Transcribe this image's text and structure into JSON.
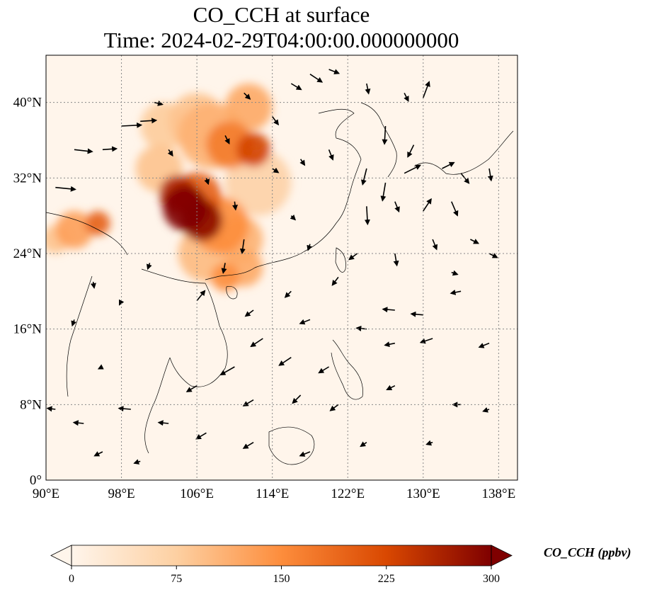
{
  "title": {
    "line1": "CO_CCH at surface",
    "line2": "Time: 2024-02-29T04:00:00.000000000"
  },
  "map": {
    "extent": {
      "lon_min": 90,
      "lon_max": 140,
      "lat_min": 0,
      "lat_max": 45
    },
    "gridlines": true,
    "lon_ticks": [
      {
        "v": 90,
        "label": "90°E"
      },
      {
        "v": 98,
        "label": "98°E"
      },
      {
        "v": 106,
        "label": "106°E"
      },
      {
        "v": 114,
        "label": "114°E"
      },
      {
        "v": 122,
        "label": "122°E"
      },
      {
        "v": 130,
        "label": "130°E"
      },
      {
        "v": 138,
        "label": "138°E"
      }
    ],
    "lat_ticks": [
      {
        "v": 0,
        "label": "0°"
      },
      {
        "v": 8,
        "label": "8°N"
      },
      {
        "v": 16,
        "label": "16°N"
      },
      {
        "v": 24,
        "label": "24°N"
      },
      {
        "v": 32,
        "label": "32°N"
      },
      {
        "v": 40,
        "label": "40°N"
      }
    ],
    "colormap": [
      "#fff5eb",
      "#fdd0a2",
      "#fd8d3c",
      "#d94801",
      "#7f0000"
    ],
    "plumes": [
      {
        "lon": 104.8,
        "lat": 28.8,
        "r": 2.4,
        "v": 300
      },
      {
        "lon": 106.5,
        "lat": 27.5,
        "r": 2.2,
        "v": 290
      },
      {
        "lon": 104.0,
        "lat": 30.3,
        "r": 2.0,
        "v": 260
      },
      {
        "lon": 106.0,
        "lat": 30.0,
        "r": 2.6,
        "v": 200
      },
      {
        "lon": 108.5,
        "lat": 27.0,
        "r": 3.0,
        "v": 150
      },
      {
        "lon": 110.5,
        "lat": 25.5,
        "r": 2.5,
        "v": 110
      },
      {
        "lon": 107.0,
        "lat": 24.0,
        "r": 3.0,
        "v": 100
      },
      {
        "lon": 109.0,
        "lat": 21.5,
        "r": 1.5,
        "v": 150
      },
      {
        "lon": 112.0,
        "lat": 35.0,
        "r": 1.8,
        "v": 230
      },
      {
        "lon": 109.5,
        "lat": 35.5,
        "r": 2.5,
        "v": 170
      },
      {
        "lon": 107.5,
        "lat": 36.5,
        "r": 3.5,
        "v": 110
      },
      {
        "lon": 111.5,
        "lat": 39.5,
        "r": 2.5,
        "v": 120
      },
      {
        "lon": 106.0,
        "lat": 38.0,
        "r": 3.0,
        "v": 90
      },
      {
        "lon": 102.5,
        "lat": 37.5,
        "r": 2.5,
        "v": 80
      },
      {
        "lon": 102.0,
        "lat": 33.0,
        "r": 2.5,
        "v": 90
      },
      {
        "lon": 112.5,
        "lat": 31.5,
        "r": 3.5,
        "v": 70
      },
      {
        "lon": 111.0,
        "lat": 22.5,
        "r": 2.0,
        "v": 120
      },
      {
        "lon": 93.0,
        "lat": 26.5,
        "r": 2.0,
        "v": 130
      },
      {
        "lon": 95.5,
        "lat": 27.2,
        "r": 1.3,
        "v": 200
      },
      {
        "lon": 91.0,
        "lat": 25.5,
        "r": 1.5,
        "v": 90
      }
    ],
    "vectors": [
      {
        "lon": 91,
        "lat": 31,
        "u": 1.0,
        "v": -0.1
      },
      {
        "lon": 93,
        "lat": 35,
        "u": 0.9,
        "v": -0.1
      },
      {
        "lon": 96,
        "lat": 35,
        "u": 0.7,
        "v": 0.05
      },
      {
        "lon": 98,
        "lat": 37.5,
        "u": 1.0,
        "v": 0.05
      },
      {
        "lon": 100,
        "lat": 38,
        "u": 0.8,
        "v": 0.05
      },
      {
        "lon": 101.5,
        "lat": 40,
        "u": 0.4,
        "v": -0.1
      },
      {
        "lon": 111,
        "lat": 41,
        "u": 0.3,
        "v": -0.3
      },
      {
        "lon": 116,
        "lat": 42,
        "u": 0.5,
        "v": -0.3
      },
      {
        "lon": 118,
        "lat": 43,
        "u": 0.6,
        "v": -0.4
      },
      {
        "lon": 120,
        "lat": 43.5,
        "u": 0.5,
        "v": -0.2
      },
      {
        "lon": 124,
        "lat": 42,
        "u": 0.1,
        "v": -0.5
      },
      {
        "lon": 128,
        "lat": 41,
        "u": 0.2,
        "v": -0.4
      },
      {
        "lon": 130,
        "lat": 40.5,
        "u": 0.3,
        "v": 0.8
      },
      {
        "lon": 126,
        "lat": 37.5,
        "u": -0.05,
        "v": -0.9
      },
      {
        "lon": 129,
        "lat": 35.5,
        "u": -0.3,
        "v": -0.6
      },
      {
        "lon": 132,
        "lat": 33,
        "u": 0.6,
        "v": 0.3
      },
      {
        "lon": 128,
        "lat": 32.5,
        "u": 0.8,
        "v": 0.4
      },
      {
        "lon": 124,
        "lat": 33,
        "u": -0.2,
        "v": -0.8
      },
      {
        "lon": 126,
        "lat": 31.5,
        "u": -0.15,
        "v": -0.9
      },
      {
        "lon": 124,
        "lat": 29,
        "u": 0.05,
        "v": -0.9
      },
      {
        "lon": 127,
        "lat": 29.5,
        "u": 0.2,
        "v": -0.5
      },
      {
        "lon": 130,
        "lat": 28.5,
        "u": 0.4,
        "v": 0.6
      },
      {
        "lon": 133,
        "lat": 29.5,
        "u": 0.3,
        "v": -0.7
      },
      {
        "lon": 134,
        "lat": 32.5,
        "u": 0.4,
        "v": -0.5
      },
      {
        "lon": 137,
        "lat": 33,
        "u": 0.1,
        "v": -0.6
      },
      {
        "lon": 135,
        "lat": 25.5,
        "u": 0.4,
        "v": -0.2
      },
      {
        "lon": 131,
        "lat": 25.5,
        "u": 0.2,
        "v": -0.5
      },
      {
        "lon": 127,
        "lat": 24,
        "u": 0.1,
        "v": -0.6
      },
      {
        "lon": 133,
        "lat": 22,
        "u": 0.3,
        "v": -0.1
      },
      {
        "lon": 137,
        "lat": 24,
        "u": 0.4,
        "v": -0.2
      },
      {
        "lon": 114,
        "lat": 33,
        "u": 0.3,
        "v": -0.2
      },
      {
        "lon": 117,
        "lat": 34,
        "u": 0.2,
        "v": -0.3
      },
      {
        "lon": 120,
        "lat": 35,
        "u": 0.2,
        "v": -0.5
      },
      {
        "lon": 116,
        "lat": 28,
        "u": 0.2,
        "v": -0.2
      },
      {
        "lon": 118,
        "lat": 25,
        "u": -0.1,
        "v": -0.3
      },
      {
        "lon": 121,
        "lat": 21.5,
        "u": -0.3,
        "v": -0.4
      },
      {
        "lon": 123,
        "lat": 24,
        "u": -0.4,
        "v": -0.3
      },
      {
        "lon": 116,
        "lat": 20,
        "u": -0.3,
        "v": -0.3
      },
      {
        "lon": 112,
        "lat": 18,
        "u": -0.4,
        "v": -0.3
      },
      {
        "lon": 118,
        "lat": 17,
        "u": -0.5,
        "v": -0.2
      },
      {
        "lon": 124,
        "lat": 16,
        "u": -0.5,
        "v": 0.05
      },
      {
        "lon": 127,
        "lat": 18,
        "u": -0.6,
        "v": 0.05
      },
      {
        "lon": 130,
        "lat": 17.5,
        "u": -0.6,
        "v": 0.05
      },
      {
        "lon": 127,
        "lat": 14.5,
        "u": -0.5,
        "v": -0.1
      },
      {
        "lon": 131,
        "lat": 15,
        "u": -0.6,
        "v": -0.2
      },
      {
        "lon": 137,
        "lat": 14.5,
        "u": -0.5,
        "v": -0.2
      },
      {
        "lon": 134,
        "lat": 20,
        "u": -0.5,
        "v": -0.1
      },
      {
        "lon": 120,
        "lat": 12,
        "u": -0.5,
        "v": -0.3
      },
      {
        "lon": 116,
        "lat": 13,
        "u": -0.6,
        "v": -0.4
      },
      {
        "lon": 113,
        "lat": 15,
        "u": -0.6,
        "v": -0.4
      },
      {
        "lon": 110,
        "lat": 12,
        "u": -0.7,
        "v": -0.4
      },
      {
        "lon": 106,
        "lat": 10,
        "u": -0.5,
        "v": -0.3
      },
      {
        "lon": 112,
        "lat": 8.5,
        "u": -0.5,
        "v": -0.3
      },
      {
        "lon": 117,
        "lat": 9,
        "u": -0.4,
        "v": -0.4
      },
      {
        "lon": 121,
        "lat": 8,
        "u": -0.4,
        "v": -0.3
      },
      {
        "lon": 127,
        "lat": 10,
        "u": -0.4,
        "v": -0.2
      },
      {
        "lon": 134,
        "lat": 8,
        "u": -0.4,
        "v": 0.0
      },
      {
        "lon": 137,
        "lat": 7.5,
        "u": -0.3,
        "v": -0.1
      },
      {
        "lon": 131,
        "lat": 4,
        "u": -0.3,
        "v": -0.1
      },
      {
        "lon": 124,
        "lat": 4,
        "u": -0.3,
        "v": -0.2
      },
      {
        "lon": 118,
        "lat": 3,
        "u": -0.5,
        "v": -0.2
      },
      {
        "lon": 112,
        "lat": 4,
        "u": -0.5,
        "v": -0.3
      },
      {
        "lon": 107,
        "lat": 5,
        "u": -0.5,
        "v": -0.3
      },
      {
        "lon": 103,
        "lat": 6,
        "u": -0.5,
        "v": 0.05
      },
      {
        "lon": 99,
        "lat": 7.5,
        "u": -0.6,
        "v": 0.05
      },
      {
        "lon": 94,
        "lat": 6,
        "u": -0.5,
        "v": 0.05
      },
      {
        "lon": 91,
        "lat": 7.5,
        "u": -0.4,
        "v": 0.05
      },
      {
        "lon": 96,
        "lat": 3,
        "u": -0.4,
        "v": -0.2
      },
      {
        "lon": 100,
        "lat": 2,
        "u": -0.3,
        "v": -0.1
      },
      {
        "lon": 96,
        "lat": 12,
        "u": -0.2,
        "v": -0.1
      },
      {
        "lon": 93,
        "lat": 17,
        "u": -0.1,
        "v": -0.3
      },
      {
        "lon": 95,
        "lat": 21,
        "u": 0.05,
        "v": -0.3
      },
      {
        "lon": 98,
        "lat": 19,
        "u": -0.1,
        "v": -0.2
      },
      {
        "lon": 101,
        "lat": 23,
        "u": -0.1,
        "v": -0.3
      },
      {
        "lon": 106,
        "lat": 19,
        "u": 0.4,
        "v": 0.5
      },
      {
        "lon": 109,
        "lat": 23,
        "u": -0.1,
        "v": -0.5
      },
      {
        "lon": 111,
        "lat": 25.5,
        "u": -0.1,
        "v": -0.7
      },
      {
        "lon": 110,
        "lat": 29.5,
        "u": 0.05,
        "v": -0.4
      },
      {
        "lon": 107,
        "lat": 32,
        "u": 0.1,
        "v": -0.3
      },
      {
        "lon": 103,
        "lat": 35,
        "u": 0.2,
        "v": -0.3
      },
      {
        "lon": 109,
        "lat": 36.5,
        "u": 0.2,
        "v": -0.4
      },
      {
        "lon": 114,
        "lat": 38.5,
        "u": 0.3,
        "v": -0.4
      }
    ]
  },
  "colorbar": {
    "label": "CO_CCH (ppbv)",
    "min": 0,
    "max": 300,
    "extend": "both",
    "ticks": [
      {
        "v": 0,
        "label": "0"
      },
      {
        "v": 75,
        "label": "75"
      },
      {
        "v": 150,
        "label": "150"
      },
      {
        "v": 225,
        "label": "225"
      },
      {
        "v": 300,
        "label": "300"
      }
    ]
  }
}
